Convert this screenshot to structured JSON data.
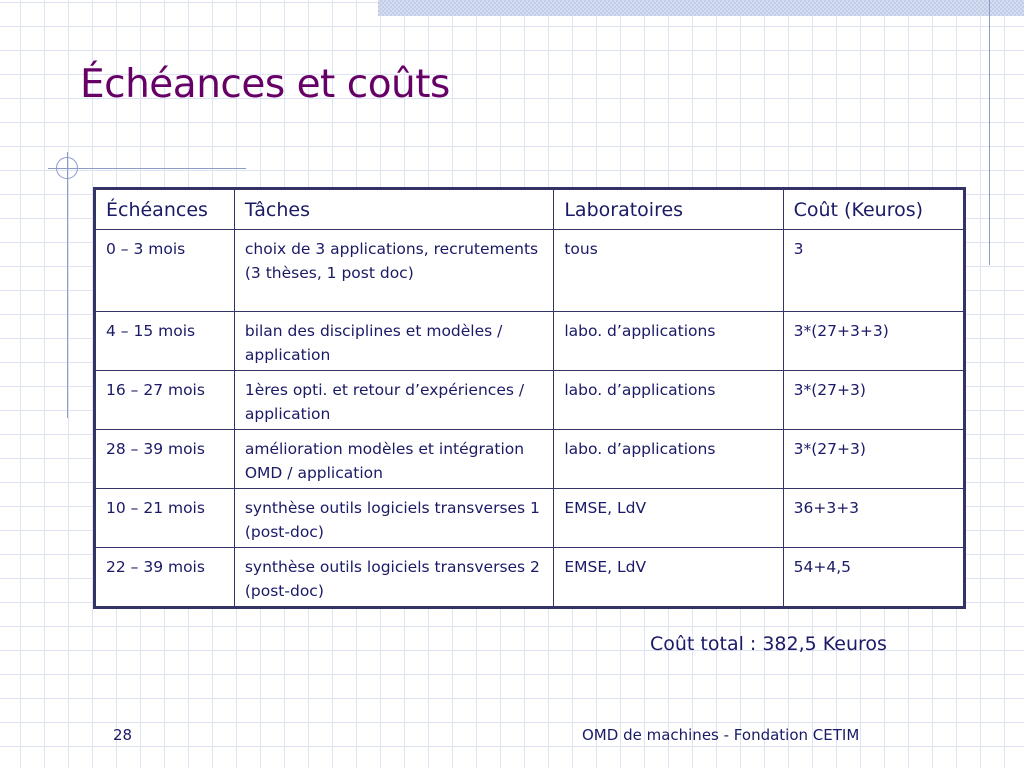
{
  "slide": {
    "title": "Échéances et coûts",
    "total": "Coût total : 382,5 Keuros",
    "page_number": "28",
    "footer": "OMD de machines - Fondation CETIM"
  },
  "table": {
    "headers": [
      "Échéances",
      "Tâches",
      "Laboratoires",
      "Coût (Keuros)"
    ],
    "rows": [
      [
        "0 – 3 mois",
        "choix de 3 applications, recrutements (3 thèses, 1 post doc)",
        "tous",
        "3"
      ],
      [
        "4 – 15 mois",
        "bilan des disciplines et modèles / application",
        "labo. d’applications",
        "3*(27+3+3)"
      ],
      [
        "16 – 27 mois",
        "1ères opti. et retour d’expériences / application",
        "labo. d’applications",
        "3*(27+3)"
      ],
      [
        "28 – 39 mois",
        "amélioration modèles et intégration OMD / application",
        "labo. d’applications",
        "3*(27+3)"
      ],
      [
        "10 – 21 mois",
        "synthèse outils logiciels transverses 1 (post-doc)",
        "EMSE, LdV",
        "36+3+3"
      ],
      [
        "22 – 39 mois",
        "synthèse outils logiciels transverses 2 (post-doc)",
        "EMSE, LdV",
        "54+4,5"
      ]
    ]
  },
  "colors": {
    "title": "#660066",
    "text": "#1a1a66",
    "table_border": "#333366",
    "grid": "#dde3f2",
    "decor_line": "#8b9ccb"
  }
}
